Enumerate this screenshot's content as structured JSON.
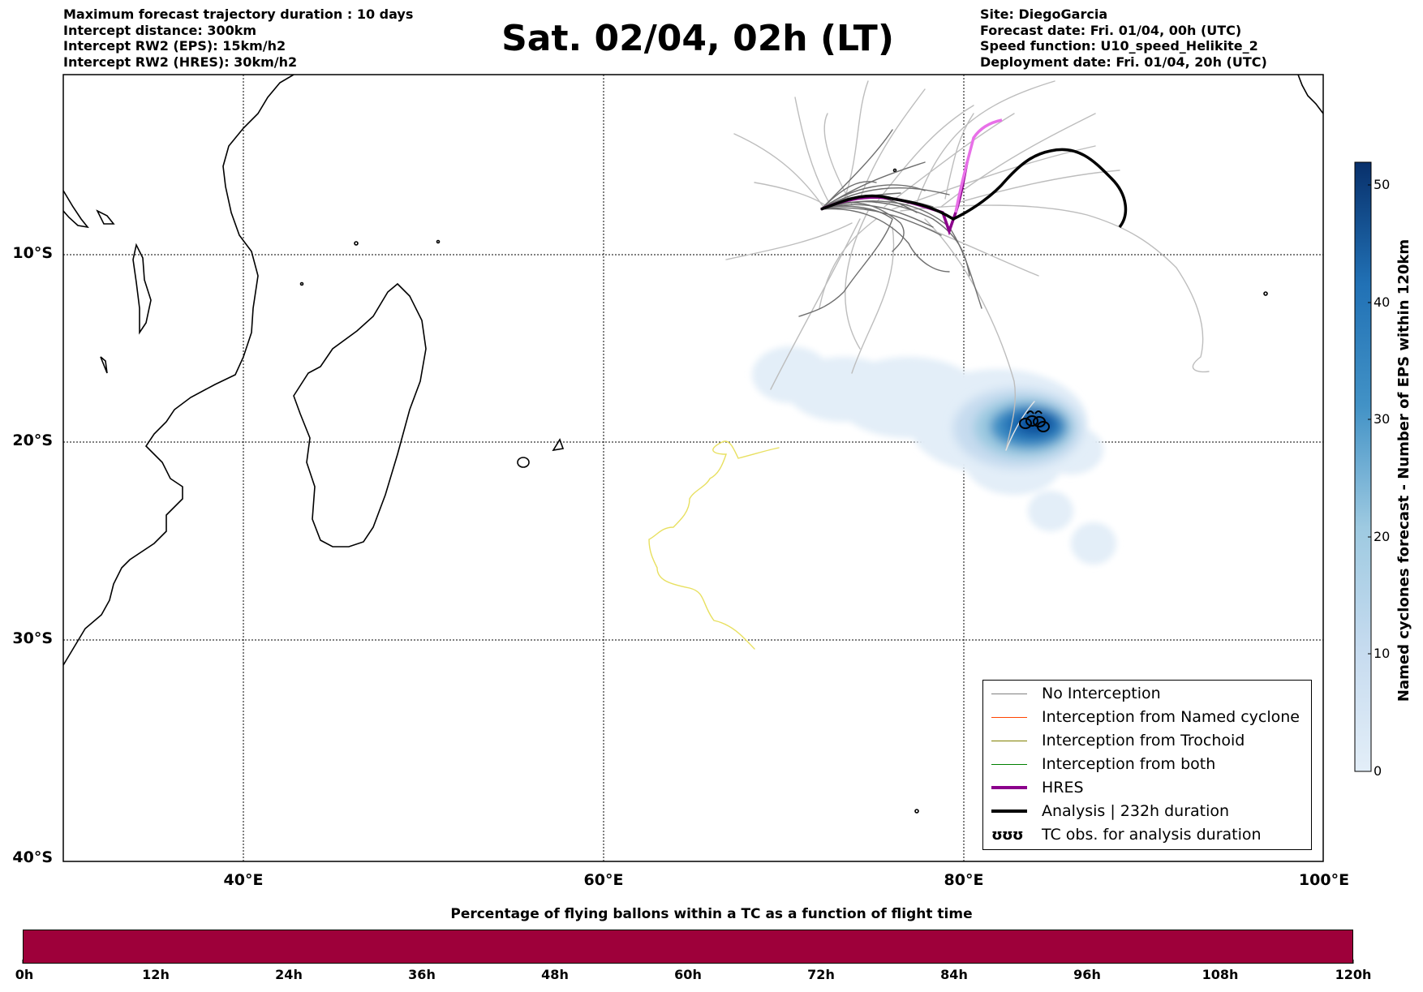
{
  "header_left": [
    "Maximum forecast trajectory duration : 10 days",
    "Intercept distance: 300km",
    "Intercept RW2 (EPS):  15km/h2",
    "Intercept RW2 (HRES): 30km/h2"
  ],
  "header_right": [
    "Site: DiegoGarcia",
    "Forecast date: Fri. 01/04, 00h (UTC)",
    "Speed function: U10_speed_Helikite_2",
    "Deployment date: Fri. 01/04, 20h (UTC)"
  ],
  "title": "Sat. 02/04, 02h (LT)",
  "map": {
    "lon_range": [
      30,
      100
    ],
    "lat_range": [
      -40,
      0
    ],
    "lat_labels": [
      "10°S",
      "20°S",
      "30°S",
      "40°S"
    ],
    "lon_labels": [
      "40°E",
      "60°E",
      "80°E",
      "100°E"
    ],
    "gridlines": "dotted"
  },
  "colorbar": {
    "title": "Named cyclones forecast - Number of EPS within 120km",
    "ticks": [
      "0",
      "10",
      "20",
      "30",
      "40",
      "50"
    ],
    "range": [
      0,
      52
    ],
    "color_low": "#e3eef8",
    "color_high": "#08306b"
  },
  "legend": {
    "items": [
      {
        "label": "No Interception",
        "color": "#808080",
        "style": "thin"
      },
      {
        "label": "Interception from Named cyclone",
        "color": "#ff4500",
        "style": "thin"
      },
      {
        "label": "Interception from Trochoid",
        "color": "#808000",
        "style": "thin"
      },
      {
        "label": "Interception from both",
        "color": "#008000",
        "style": "thin"
      },
      {
        "label": "HRES",
        "color": "#8b008b",
        "style": "thick"
      },
      {
        "label": "Analysis | 232h duration",
        "color": "#000000",
        "style": "thick"
      },
      {
        "label": "TC obs. for analysis duration",
        "color": "#000000",
        "style": "symbol",
        "symbol": "ʊʊʊ"
      }
    ]
  },
  "flight_bar": {
    "title": "Percentage of flying ballons within a TC as a function of flight time",
    "color": "#9e003a",
    "ticks": [
      "0h",
      "12h",
      "24h",
      "36h",
      "48h",
      "60h",
      "72h",
      "84h",
      "96h",
      "108h",
      "120h"
    ]
  }
}
